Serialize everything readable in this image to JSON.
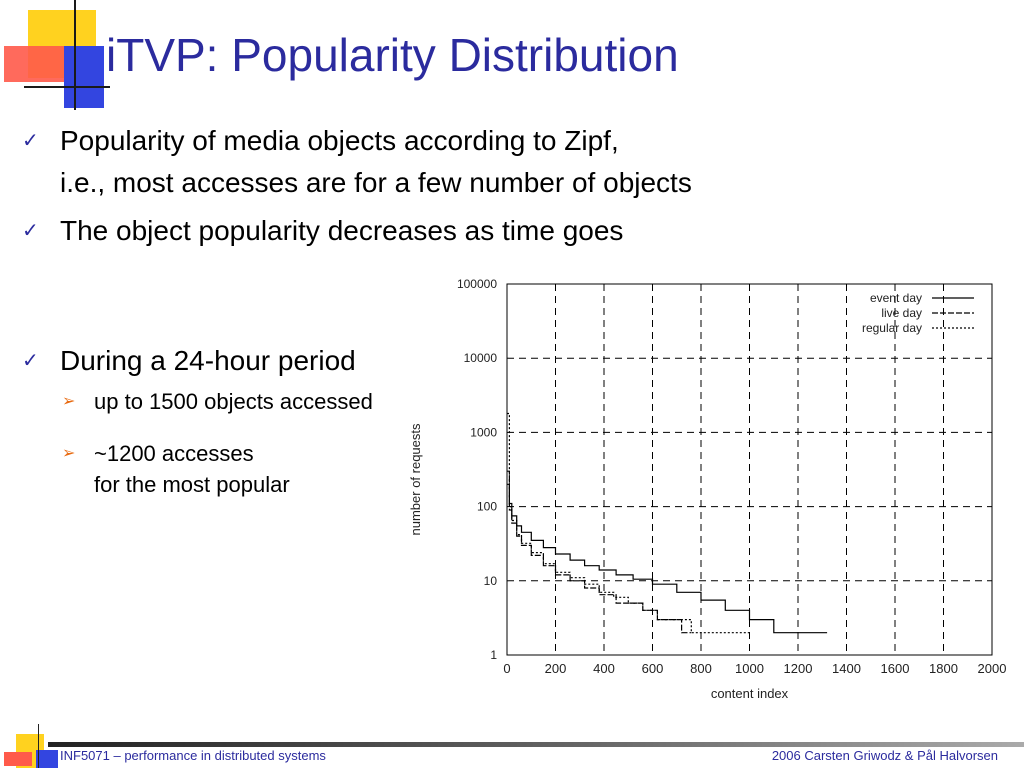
{
  "slide": {
    "title": "iTVP: Popularity Distribution",
    "bullets": [
      {
        "lines": [
          "Popularity of media objects according to Zipf,",
          "i.e., most accesses are for a few number of objects"
        ]
      },
      {
        "lines": [
          "The object popularity decreases as time goes"
        ]
      },
      {
        "lines": [
          "During a 24-hour period"
        ]
      }
    ],
    "sub_bullets": [
      {
        "lines": [
          "up to 1500 objects accessed"
        ]
      },
      {
        "lines": [
          "~1200 accesses",
          "for the most popular"
        ]
      }
    ],
    "check_mark": "✓",
    "arrow_mark": "➢"
  },
  "footer": {
    "left": "INF5071 – performance in distributed systems",
    "right": "2006  Carsten Griwodz & Pål Halvorsen"
  },
  "chart_data": {
    "type": "line",
    "xlabel": "content index",
    "ylabel": "number of requests",
    "xlim": [
      0,
      2000
    ],
    "ylim": [
      1,
      100000
    ],
    "yscale": "log",
    "grid": true,
    "legend_position": "top-right",
    "x_ticks": [
      0,
      200,
      400,
      600,
      800,
      1000,
      1200,
      1400,
      1600,
      1800,
      2000
    ],
    "y_ticks": [
      1,
      10,
      100,
      1000,
      10000,
      100000
    ],
    "y_tick_labels": [
      "1",
      "10",
      "100",
      "1000",
      "10000",
      "100000"
    ],
    "series": [
      {
        "name": "event day",
        "style": "solid",
        "x": [
          0,
          10,
          20,
          40,
          60,
          100,
          150,
          200,
          260,
          320,
          380,
          450,
          520,
          600,
          700,
          800,
          900,
          1000,
          1050,
          1100,
          1200,
          1250,
          1320
        ],
        "y": [
          200,
          110,
          75,
          55,
          45,
          35,
          28,
          23,
          19,
          16,
          14,
          12,
          10.5,
          9,
          7,
          5.5,
          4,
          3,
          3,
          2,
          2,
          2,
          2
        ]
      },
      {
        "name": "live day",
        "style": "dashed",
        "x": [
          0,
          10,
          20,
          40,
          60,
          100,
          150,
          200,
          260,
          320,
          380,
          450,
          500,
          560,
          620,
          680,
          720,
          760
        ],
        "y": [
          300,
          90,
          60,
          40,
          30,
          22,
          16,
          12,
          10,
          8,
          6.5,
          5,
          5,
          4,
          3,
          3,
          2,
          2
        ]
      },
      {
        "name": "regular day",
        "style": "dotted",
        "x": [
          0,
          10,
          20,
          40,
          60,
          100,
          150,
          200,
          260,
          320,
          380,
          440,
          500,
          560,
          620,
          680,
          760,
          850,
          930,
          1000
        ],
        "y": [
          1800,
          100,
          65,
          42,
          32,
          24,
          17,
          13,
          11,
          9,
          7,
          6,
          5,
          4,
          3,
          3,
          2,
          2,
          2,
          2
        ]
      }
    ]
  }
}
